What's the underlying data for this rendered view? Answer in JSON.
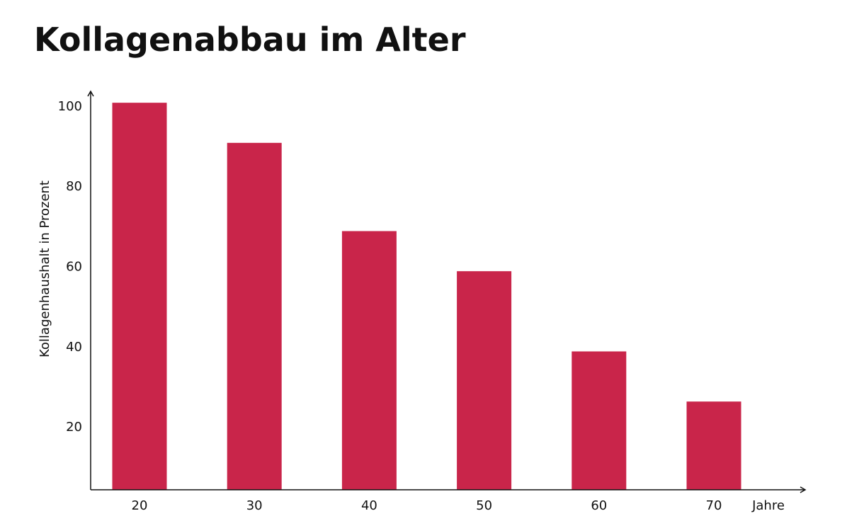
{
  "chart_data": {
    "type": "bar",
    "title": "Kollagenabbau im Alter",
    "y_label": "Kollagenhaushalt in Prozent",
    "x_label": "Jahre",
    "categories": [
      20,
      30,
      40,
      50,
      60,
      70
    ],
    "values": [
      101,
      91,
      69,
      59,
      39,
      26.5
    ],
    "color": "#c9254a",
    "ylim": [
      4.5,
      103.5
    ],
    "yticks": [
      20,
      40,
      60,
      80,
      100
    ],
    "grid": false
  }
}
